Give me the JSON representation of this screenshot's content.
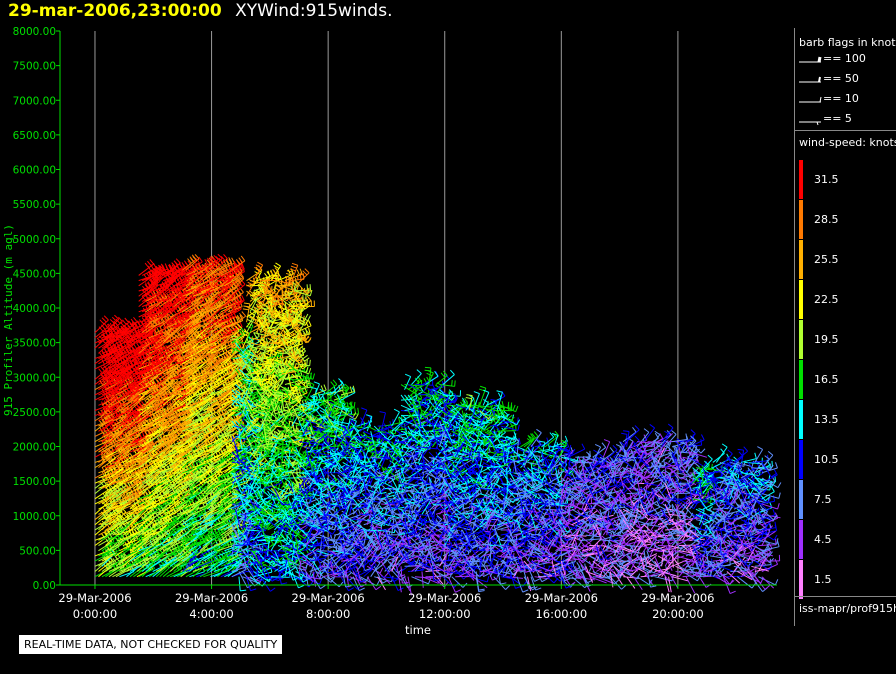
{
  "header": {
    "datetime": "29-mar-2006,23:00:00",
    "product": "XYWind:915winds."
  },
  "chart_data": {
    "type": "scatter",
    "subtype": "wind barb time-height plot",
    "xlabel": "time",
    "ylabel": "915 Profiler Altitude (m agl)",
    "ylim": [
      0,
      8000
    ],
    "xlim_hours": [
      -1.2,
      23.4
    ],
    "y_ticks": [
      "0.00",
      "500.00",
      "1000.00",
      "1500.00",
      "2000.00",
      "2500.00",
      "3000.00",
      "3500.00",
      "4000.00",
      "4500.00",
      "5000.00",
      "5500.00",
      "6000.00",
      "6500.00",
      "7000.00",
      "7500.00",
      "8000.00"
    ],
    "x_ticks": [
      {
        "hour": 0,
        "date": "29-Mar-2006",
        "time": "0:00:00"
      },
      {
        "hour": 4,
        "date": "29-Mar-2006",
        "time": "4:00:00"
      },
      {
        "hour": 8,
        "date": "29-Mar-2006",
        "time": "8:00:00"
      },
      {
        "hour": 12,
        "date": "29-Mar-2006",
        "time": "12:00:00"
      },
      {
        "hour": 16,
        "date": "29-Mar-2006",
        "time": "16:00:00"
      },
      {
        "hour": 20,
        "date": "29-Mar-2006",
        "time": "20:00:00"
      }
    ],
    "vertical_gridlines": true,
    "series": [
      {
        "hours": [
          0.0,
          1.5
        ],
        "top_m": 3700,
        "speed": 30.0
      },
      {
        "hours": [
          1.5,
          3.0
        ],
        "top_m": 4500,
        "speed": 28.0
      },
      {
        "hours": [
          3.0,
          4.7
        ],
        "top_m": 4550,
        "speed": 25.0
      },
      {
        "hours": [
          4.7,
          5.2
        ],
        "top_m": 3500,
        "speed": 15.0
      },
      {
        "hours": [
          5.2,
          7.0
        ],
        "top_m": 4400,
        "speed": 20.0
      },
      {
        "hours": [
          7.0,
          8.5
        ],
        "top_m": 2800,
        "speed": 13.0
      },
      {
        "hours": [
          8.5,
          10.5
        ],
        "top_m": 2300,
        "speed": 11.0
      },
      {
        "hours": [
          10.5,
          12.0
        ],
        "top_m": 2900,
        "speed": 11.0
      },
      {
        "hours": [
          12.0,
          14.0
        ],
        "top_m": 2600,
        "speed": 12.0
      },
      {
        "hours": [
          14.0,
          16.0
        ],
        "top_m": 2000,
        "speed": 10.0
      },
      {
        "hours": [
          16.0,
          18.0
        ],
        "top_m": 1900,
        "speed": 7.0
      },
      {
        "hours": [
          18.0,
          20.5
        ],
        "top_m": 2100,
        "speed": 6.0
      },
      {
        "hours": [
          20.5,
          21.2
        ],
        "top_m": 1700,
        "speed": 11.0
      },
      {
        "hours": [
          21.2,
          23.0
        ],
        "top_m": 1800,
        "speed": 9.0
      }
    ]
  },
  "legend": {
    "barb_title": "barb flags in knots",
    "barbs": [
      {
        "label": "== 100"
      },
      {
        "label": "== 50"
      },
      {
        "label": "== 10"
      },
      {
        "label": "== 5"
      }
    ],
    "speed_title": "wind-speed: knots",
    "scale": [
      {
        "label": "31.5",
        "color": "#ff0000"
      },
      {
        "label": "28.5",
        "color": "#ff7a00"
      },
      {
        "label": "25.5",
        "color": "#ffb000"
      },
      {
        "label": "22.5",
        "color": "#ffff00"
      },
      {
        "label": "19.5",
        "color": "#b0ff30"
      },
      {
        "label": "16.5",
        "color": "#00e000"
      },
      {
        "label": "13.5",
        "color": "#00ffff"
      },
      {
        "label": "10.5",
        "color": "#0000ff"
      },
      {
        "label": "7.5",
        "color": "#6090ff"
      },
      {
        "label": "4.5",
        "color": "#a030ff"
      },
      {
        "label": "1.5",
        "color": "#ff80ff"
      }
    ],
    "source": "iss-mapr/prof915h"
  },
  "footer": {
    "quality_note": "REAL-TIME DATA, NOT CHECKED FOR QUALITY"
  }
}
